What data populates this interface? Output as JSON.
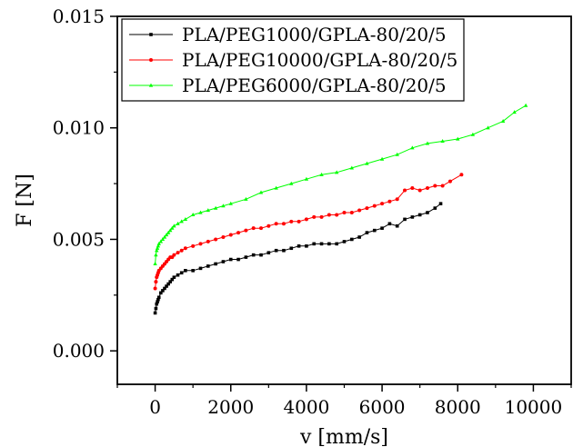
{
  "chart_data": {
    "type": "line",
    "title": "",
    "xlabel": "v [mm/s]",
    "ylabel": "F [N]",
    "xlim": [
      -1000,
      11000
    ],
    "ylim": [
      -0.0015,
      0.015
    ],
    "xticks": [
      0,
      2000,
      4000,
      6000,
      8000,
      10000
    ],
    "xtick_labels": [
      "0",
      "2000",
      "4000",
      "6000",
      "8000",
      "10000"
    ],
    "yticks": [
      0.0,
      0.005,
      0.01,
      0.015
    ],
    "ytick_labels": [
      "0.000",
      "0.005",
      "0.010",
      "0.015"
    ],
    "grid": false,
    "legend_position": "top-left",
    "series": [
      {
        "name": "PLA/PEG1000/GPLA-80/20/5",
        "color": "#000000",
        "marker": "square",
        "x": [
          0,
          20,
          40,
          60,
          80,
          100,
          150,
          200,
          250,
          300,
          350,
          400,
          450,
          500,
          600,
          700,
          800,
          1000,
          1200,
          1400,
          1600,
          1800,
          2000,
          2200,
          2400,
          2600,
          2800,
          3000,
          3200,
          3400,
          3600,
          3800,
          4000,
          4200,
          4400,
          4600,
          4800,
          5000,
          5200,
          5400,
          5600,
          5800,
          6000,
          6200,
          6400,
          6600,
          6800,
          7000,
          7200,
          7400,
          7550
        ],
        "y": [
          0.0017,
          0.0019,
          0.0021,
          0.0022,
          0.0023,
          0.0024,
          0.0026,
          0.0027,
          0.0028,
          0.0029,
          0.003,
          0.0031,
          0.0032,
          0.0033,
          0.0034,
          0.0035,
          0.0036,
          0.0036,
          0.0037,
          0.0038,
          0.0039,
          0.004,
          0.0041,
          0.0041,
          0.0042,
          0.0043,
          0.0043,
          0.0044,
          0.0045,
          0.0045,
          0.0046,
          0.0047,
          0.0047,
          0.0048,
          0.0048,
          0.0048,
          0.0048,
          0.0049,
          0.005,
          0.0051,
          0.0053,
          0.0054,
          0.0055,
          0.0057,
          0.0056,
          0.0059,
          0.006,
          0.0061,
          0.0062,
          0.0064,
          0.0066
        ]
      },
      {
        "name": "PLA/PEG10000/GPLA-80/20/5",
        "color": "#ff0000",
        "marker": "circle",
        "x": [
          0,
          20,
          40,
          60,
          80,
          100,
          150,
          200,
          250,
          300,
          350,
          400,
          450,
          500,
          600,
          700,
          800,
          1000,
          1200,
          1400,
          1600,
          1800,
          2000,
          2200,
          2400,
          2600,
          2800,
          3000,
          3200,
          3400,
          3600,
          3800,
          4000,
          4200,
          4400,
          4600,
          4800,
          5000,
          5200,
          5400,
          5600,
          5800,
          6000,
          6200,
          6400,
          6600,
          6800,
          7000,
          7200,
          7400,
          7600,
          7800,
          8100
        ],
        "y": [
          0.0028,
          0.0031,
          0.0033,
          0.0034,
          0.0035,
          0.0036,
          0.0037,
          0.0038,
          0.0039,
          0.004,
          0.0041,
          0.0042,
          0.0042,
          0.0043,
          0.0044,
          0.0045,
          0.0046,
          0.0047,
          0.0048,
          0.0049,
          0.005,
          0.0051,
          0.0052,
          0.0053,
          0.0054,
          0.0055,
          0.0055,
          0.0056,
          0.0057,
          0.0057,
          0.0058,
          0.0058,
          0.0059,
          0.006,
          0.006,
          0.0061,
          0.0061,
          0.0062,
          0.0062,
          0.0063,
          0.0064,
          0.0065,
          0.0066,
          0.0067,
          0.0068,
          0.0072,
          0.0073,
          0.0072,
          0.0073,
          0.0074,
          0.0074,
          0.0076,
          0.0079
        ]
      },
      {
        "name": "PLA/PEG6000/GPLA-80/20/5",
        "color": "#00ff00",
        "marker": "triangle",
        "x": [
          0,
          20,
          40,
          60,
          80,
          100,
          150,
          200,
          250,
          300,
          350,
          400,
          450,
          500,
          600,
          700,
          800,
          1000,
          1200,
          1400,
          1600,
          1800,
          2000,
          2400,
          2800,
          3200,
          3600,
          4000,
          4400,
          4800,
          5200,
          5600,
          6000,
          6400,
          6800,
          7200,
          7600,
          8000,
          8400,
          8800,
          9200,
          9500,
          9800
        ],
        "y": [
          0.0039,
          0.0043,
          0.0045,
          0.0046,
          0.0047,
          0.0048,
          0.0049,
          0.005,
          0.0051,
          0.0052,
          0.0053,
          0.0054,
          0.0055,
          0.0056,
          0.0057,
          0.0058,
          0.0059,
          0.0061,
          0.0062,
          0.0063,
          0.0064,
          0.0065,
          0.0066,
          0.0068,
          0.0071,
          0.0073,
          0.0075,
          0.0077,
          0.0079,
          0.008,
          0.0082,
          0.0084,
          0.0086,
          0.0088,
          0.0091,
          0.0093,
          0.0094,
          0.0095,
          0.0097,
          0.01,
          0.0103,
          0.0107,
          0.011
        ]
      }
    ]
  }
}
